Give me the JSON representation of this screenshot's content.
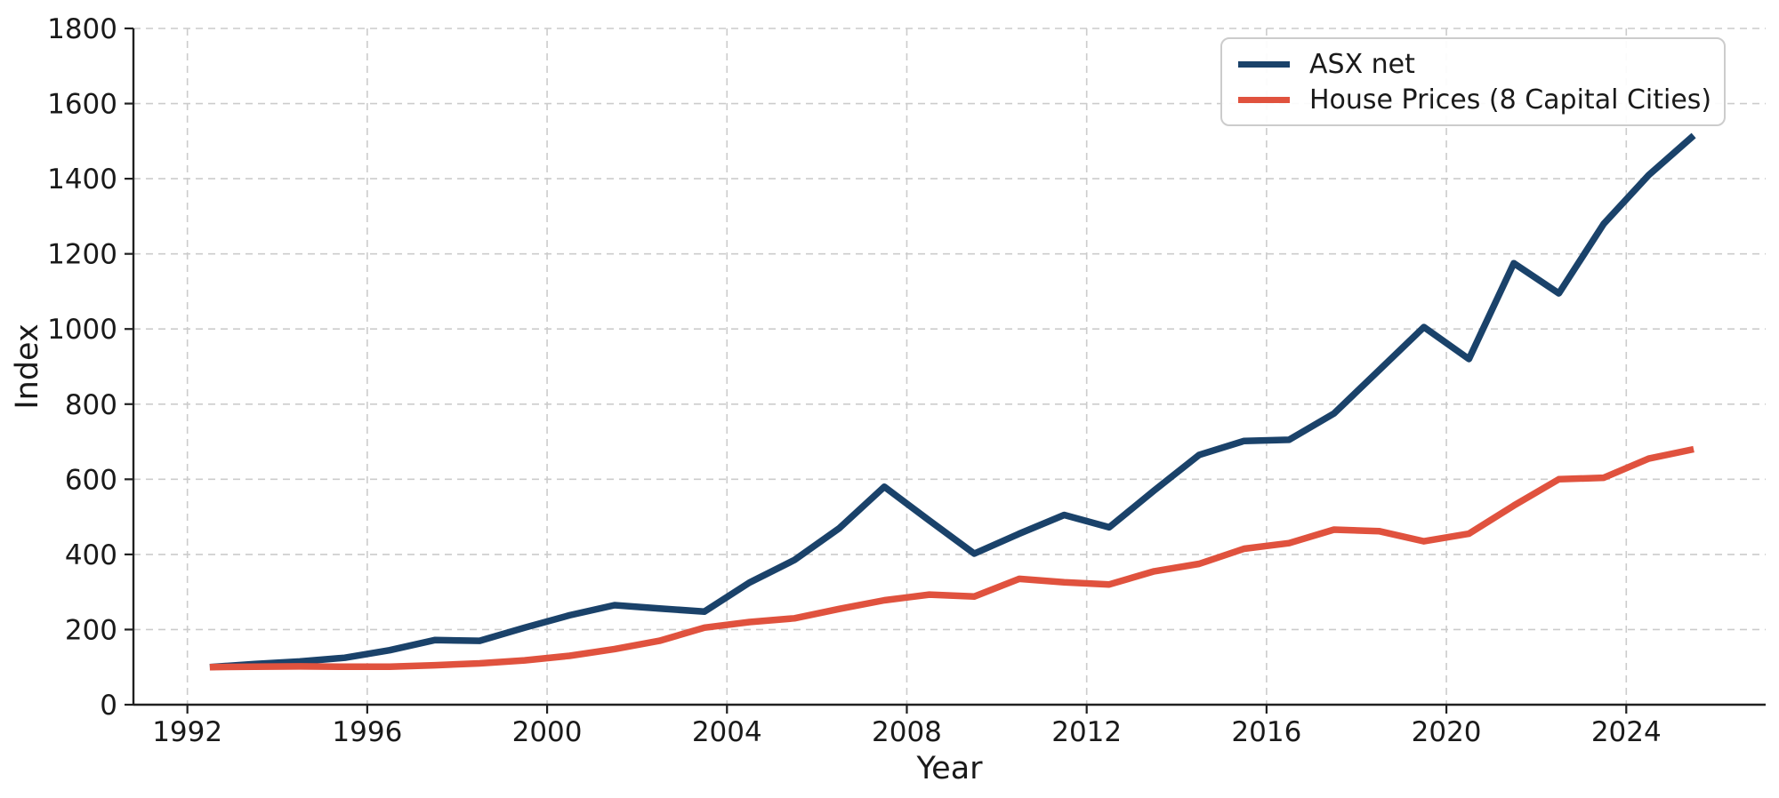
{
  "chart_data": {
    "type": "line",
    "title": "",
    "xlabel": "Year",
    "ylabel": "Index",
    "grid": true,
    "legend_position": "upper right",
    "xlim": [
      1990.8,
      2027.1
    ],
    "ylim": [
      0,
      1800
    ],
    "x_ticks": [
      1992,
      1996,
      2000,
      2004,
      2008,
      2012,
      2016,
      2020,
      2024
    ],
    "y_ticks": [
      0,
      200,
      400,
      600,
      800,
      1000,
      1200,
      1400,
      1600,
      1800
    ],
    "x": [
      1992.5,
      1993.5,
      1994.5,
      1995.5,
      1996.5,
      1997.5,
      1998.5,
      1999.5,
      2000.5,
      2001.5,
      2002.5,
      2003.5,
      2004.5,
      2005.5,
      2006.5,
      2007.5,
      2008.5,
      2009.5,
      2010.5,
      2011.5,
      2012.5,
      2013.5,
      2014.5,
      2015.5,
      2016.5,
      2017.5,
      2018.5,
      2019.5,
      2020.5,
      2021.5,
      2022.5,
      2023.5,
      2024.5,
      2025.5
    ],
    "series": [
      {
        "name": "ASX net",
        "color": "#1a426a",
        "values": [
          100,
          108,
          115,
          125,
          145,
          172,
          170,
          205,
          238,
          265,
          256,
          248,
          325,
          385,
          470,
          580,
          490,
          402,
          455,
          505,
          472,
          570,
          665,
          702,
          705,
          775,
          890,
          1005,
          920,
          1175,
          1095,
          1280,
          1410,
          1515
        ]
      },
      {
        "name": "House Prices (8 Capital Cities)",
        "color": "#e0523e",
        "values": [
          100,
          101,
          102,
          101,
          101,
          105,
          110,
          118,
          130,
          148,
          170,
          205,
          220,
          230,
          255,
          278,
          293,
          288,
          335,
          326,
          320,
          355,
          375,
          415,
          430,
          466,
          462,
          435,
          455,
          530,
          600,
          604,
          655,
          680
        ]
      }
    ],
    "colors": {
      "grid": "#cccccc",
      "axis": "#202020",
      "text": "#1a1a1a",
      "background": "#ffffff"
    }
  }
}
